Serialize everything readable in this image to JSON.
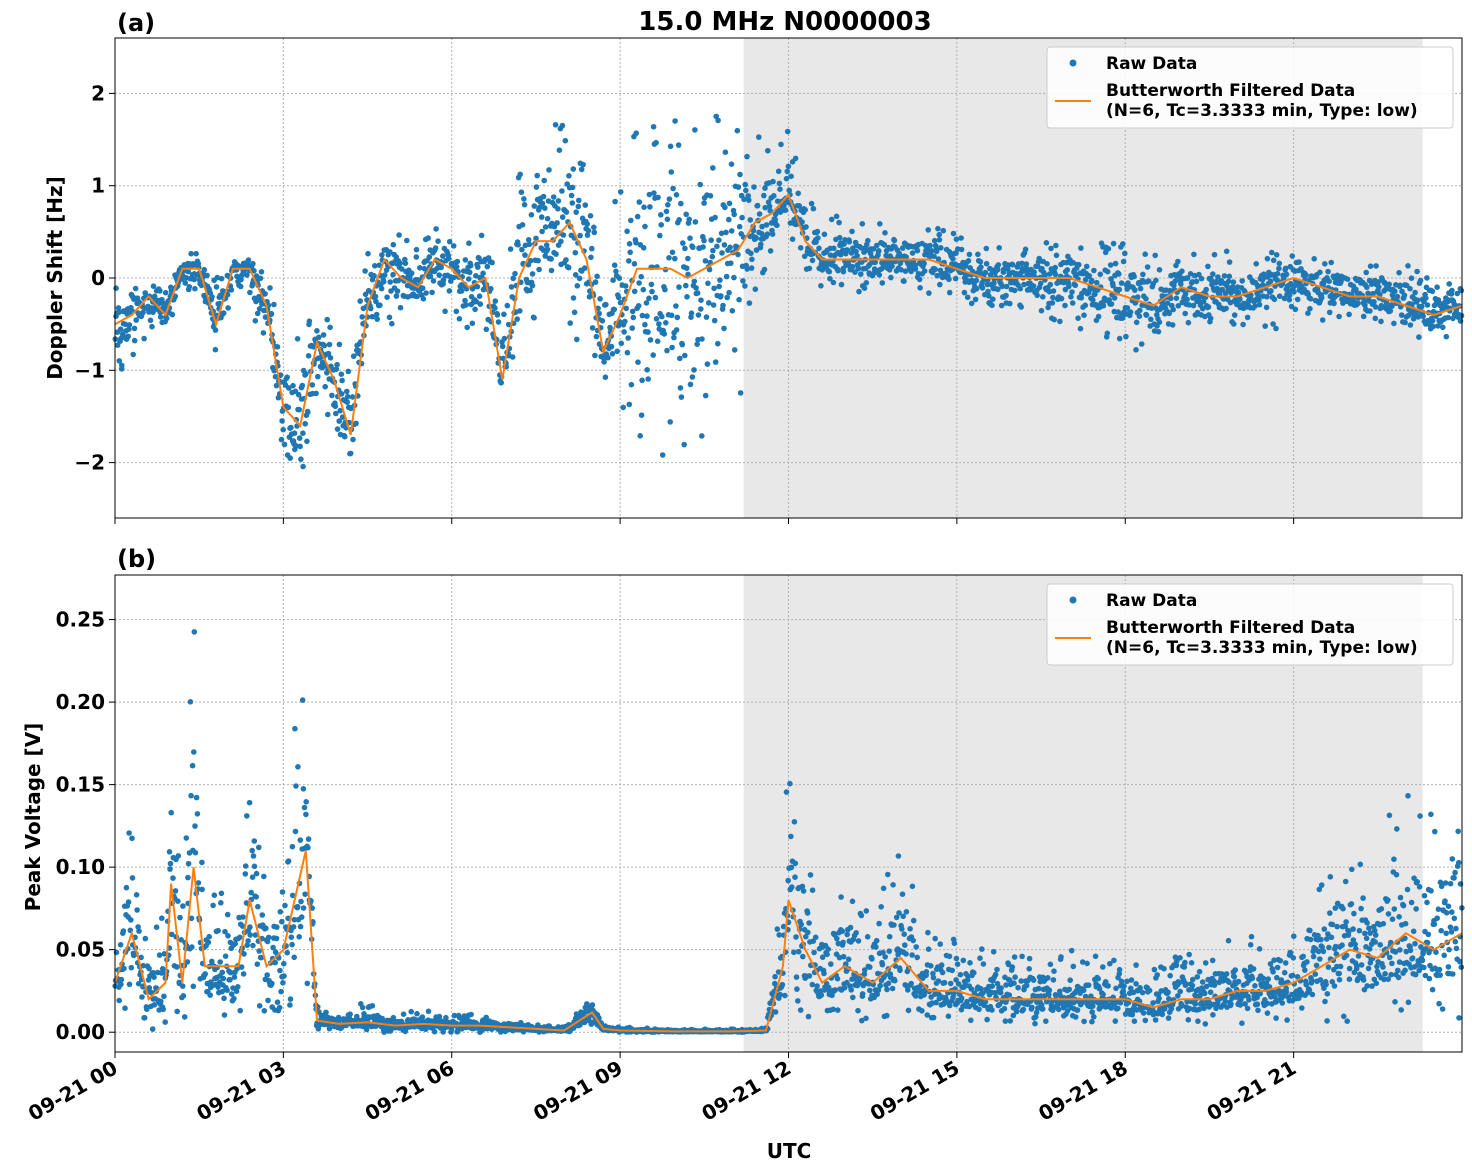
{
  "figure": {
    "title": "15.0 MHz N0000003",
    "xlabel": "UTC"
  },
  "chart_data": [
    {
      "type": "scatter",
      "panel_label": "(a)",
      "ylabel": "Doppler Shift [Hz]",
      "ylim": [
        -2.6,
        2.6
      ],
      "yticks": [
        -2,
        -1,
        0,
        1,
        2
      ],
      "ytick_labels": [
        "−2",
        "−1",
        "0",
        "1",
        "2"
      ],
      "xticks": [
        "09-21 00",
        "09-21 03",
        "09-21 06",
        "09-21 09",
        "09-21 12",
        "09-21 15",
        "09-21 18",
        "09-21 21"
      ],
      "xlim_hours": [
        0,
        24
      ],
      "grid": true,
      "legend_position": "top-right",
      "shaded_region_hours": [
        11.2,
        23.3
      ],
      "series": [
        {
          "name": "Raw Data",
          "kind": "scatter",
          "color": "#1f77b4",
          "envelope": {
            "x_hours": [
              0,
              0.3,
              0.6,
              0.9,
              1.2,
              1.5,
              1.8,
              2.1,
              2.4,
              2.7,
              3.0,
              3.3,
              3.6,
              3.9,
              4.2,
              4.5,
              4.8,
              5.1,
              5.4,
              5.7,
              6.0,
              6.3,
              6.6,
              6.9,
              7.2,
              7.5,
              7.8,
              8.1,
              8.4,
              8.7,
              9.0,
              9.3,
              9.6,
              9.9,
              10.2,
              10.5,
              10.8,
              11.1,
              11.4,
              11.7,
              12.0,
              12.3,
              12.6,
              13.0,
              13.5,
              14.0,
              14.5,
              15.0,
              15.5,
              16.0,
              16.5,
              17.0,
              17.5,
              18.0,
              18.5,
              19.0,
              19.5,
              20.0,
              20.5,
              21.0,
              21.5,
              22.0,
              22.5,
              23.0,
              23.5,
              24.0
            ],
            "upper": [
              0.0,
              0.1,
              -0.1,
              0.0,
              0.25,
              0.3,
              0.0,
              0.2,
              0.3,
              0.0,
              -0.5,
              -0.6,
              -0.1,
              -0.5,
              -0.9,
              0.4,
              0.5,
              0.5,
              0.3,
              0.6,
              0.5,
              0.4,
              0.5,
              0.0,
              1.2,
              1.4,
              1.7,
              1.8,
              1.2,
              0.3,
              1.3,
              1.9,
              2.0,
              1.9,
              2.0,
              1.9,
              1.7,
              1.9,
              1.6,
              1.7,
              1.6,
              1.2,
              0.8,
              0.7,
              0.6,
              0.6,
              0.6,
              0.5,
              0.4,
              0.4,
              0.4,
              0.4,
              0.4,
              0.4,
              0.3,
              0.3,
              0.3,
              0.3,
              0.3,
              0.3,
              0.2,
              0.3,
              0.2,
              0.2,
              0.0,
              -0.1
            ],
            "lower": [
              -1.1,
              -0.9,
              -0.6,
              -0.6,
              -0.1,
              -0.2,
              -0.8,
              -0.2,
              -0.5,
              -0.7,
              -2.0,
              -2.3,
              -1.3,
              -1.8,
              -2.3,
              -0.5,
              -0.5,
              -0.6,
              -0.4,
              -0.3,
              -0.5,
              -0.6,
              -0.6,
              -1.5,
              -0.7,
              -0.4,
              0.0,
              -0.6,
              -0.9,
              -1.1,
              -1.4,
              -1.9,
              -2.0,
              -2.0,
              -1.9,
              -1.8,
              -1.6,
              -1.4,
              -0.4,
              0.2,
              0.5,
              0.1,
              -0.1,
              -0.1,
              -0.2,
              -0.1,
              -0.2,
              -0.3,
              -0.3,
              -0.3,
              -0.4,
              -0.6,
              -0.6,
              -0.8,
              -0.9,
              -0.5,
              -0.5,
              -0.5,
              -0.6,
              -0.5,
              -0.5,
              -0.4,
              -0.5,
              -0.6,
              -0.7,
              -0.6
            ]
          }
        },
        {
          "name": "Butterworth Filtered Data\n(N=6, Tc=3.3333 min, Type: low)",
          "kind": "line",
          "color": "#ff7f0e",
          "x_hours": [
            0,
            0.3,
            0.6,
            0.9,
            1.2,
            1.5,
            1.8,
            2.1,
            2.4,
            2.7,
            3.0,
            3.3,
            3.6,
            3.9,
            4.2,
            4.5,
            4.8,
            5.1,
            5.4,
            5.7,
            6.0,
            6.3,
            6.6,
            6.9,
            7.2,
            7.5,
            7.8,
            8.1,
            8.4,
            8.7,
            9.0,
            9.3,
            9.6,
            9.9,
            10.2,
            10.5,
            10.8,
            11.1,
            11.4,
            11.7,
            12.0,
            12.3,
            12.6,
            13.0,
            13.5,
            14.0,
            14.5,
            15.0,
            15.5,
            16.0,
            16.5,
            17.0,
            17.5,
            18.0,
            18.5,
            19.0,
            19.5,
            20.0,
            20.5,
            21.0,
            21.5,
            22.0,
            22.5,
            23.0,
            23.5,
            24.0
          ],
          "y": [
            -0.5,
            -0.4,
            -0.2,
            -0.4,
            0.1,
            0.1,
            -0.5,
            0.1,
            0.1,
            -0.3,
            -1.4,
            -1.6,
            -0.7,
            -1.1,
            -1.7,
            -0.3,
            0.2,
            0.0,
            -0.1,
            0.2,
            0.1,
            -0.1,
            0.0,
            -1.1,
            0.0,
            0.4,
            0.4,
            0.6,
            0.2,
            -0.8,
            -0.4,
            0.1,
            0.1,
            0.1,
            0.0,
            0.1,
            0.2,
            0.3,
            0.6,
            0.7,
            0.9,
            0.4,
            0.2,
            0.2,
            0.2,
            0.2,
            0.2,
            0.1,
            0.0,
            0.0,
            0.0,
            0.0,
            -0.1,
            -0.2,
            -0.3,
            -0.1,
            -0.2,
            -0.2,
            -0.1,
            0.0,
            -0.1,
            -0.2,
            -0.2,
            -0.3,
            -0.4,
            -0.3
          ]
        }
      ]
    },
    {
      "type": "scatter",
      "panel_label": "(b)",
      "ylabel": "Peak Voltage [V]",
      "ylim": [
        -0.012,
        0.277
      ],
      "yticks": [
        0.0,
        0.05,
        0.1,
        0.15,
        0.2,
        0.25
      ],
      "ytick_labels": [
        "0.00",
        "0.05",
        "0.10",
        "0.15",
        "0.20",
        "0.25"
      ],
      "xticks": [
        "09-21 00",
        "09-21 03",
        "09-21 06",
        "09-21 09",
        "09-21 12",
        "09-21 15",
        "09-21 18",
        "09-21 21"
      ],
      "xlim_hours": [
        0,
        24
      ],
      "grid": true,
      "legend_position": "top-right",
      "shaded_region_hours": [
        11.2,
        23.3
      ],
      "series": [
        {
          "name": "Raw Data",
          "kind": "scatter",
          "color": "#1f77b4",
          "envelope": {
            "x_hours": [
              0,
              0.3,
              0.6,
              0.9,
              1.0,
              1.2,
              1.4,
              1.6,
              1.9,
              2.2,
              2.4,
              2.7,
              3.0,
              3.2,
              3.4,
              3.6,
              4.0,
              4.5,
              5.0,
              5.5,
              6.0,
              6.5,
              7.0,
              7.5,
              8.0,
              8.5,
              8.7,
              9.0,
              10.0,
              11.0,
              11.6,
              11.9,
              12.0,
              12.3,
              12.6,
              13.0,
              13.5,
              14.0,
              14.5,
              15.0,
              15.5,
              16.0,
              16.5,
              17.0,
              17.5,
              18.0,
              18.5,
              19.0,
              19.5,
              20.0,
              20.5,
              21.0,
              21.5,
              22.0,
              22.5,
              23.0,
              23.5,
              24.0
            ],
            "upper": [
              0.09,
              0.14,
              0.06,
              0.08,
              0.19,
              0.08,
              0.26,
              0.09,
              0.09,
              0.1,
              0.17,
              0.09,
              0.1,
              0.19,
              0.22,
              0.02,
              0.01,
              0.02,
              0.01,
              0.015,
              0.01,
              0.012,
              0.008,
              0.005,
              0.003,
              0.025,
              0.005,
              0.003,
              0.002,
              0.002,
              0.003,
              0.1,
              0.19,
              0.12,
              0.08,
              0.1,
              0.08,
              0.11,
              0.06,
              0.06,
              0.05,
              0.05,
              0.05,
              0.05,
              0.05,
              0.05,
              0.04,
              0.05,
              0.05,
              0.06,
              0.06,
              0.08,
              0.1,
              0.13,
              0.12,
              0.15,
              0.13,
              0.16
            ],
            "upper_floor": true,
            "lower": [
              0.01,
              0.005,
              0.0,
              0.005,
              0.005,
              0.0,
              0.0,
              0.005,
              0.005,
              0.005,
              0.005,
              0.01,
              0.01,
              0.02,
              0.005,
              0.002,
              0.002,
              0.0,
              0.0,
              0.0,
              0.0,
              0.0,
              0.0,
              0.0,
              0.0,
              0.0,
              0.0,
              0.0,
              0.0,
              0.0,
              0.0,
              0.01,
              0.02,
              0.01,
              0.005,
              0.01,
              0.005,
              0.005,
              0.005,
              0.005,
              0.005,
              0.005,
              0.005,
              0.005,
              0.005,
              0.005,
              0.005,
              0.005,
              0.005,
              0.005,
              0.005,
              0.005,
              0.005,
              0.005,
              0.005,
              0.005,
              0.005,
              0.005
            ]
          }
        },
        {
          "name": "Butterworth Filtered Data\n(N=6, Tc=3.3333 min, Type: low)",
          "kind": "line",
          "color": "#ff7f0e",
          "x_hours": [
            0,
            0.3,
            0.6,
            0.9,
            1.0,
            1.2,
            1.4,
            1.6,
            1.9,
            2.2,
            2.4,
            2.7,
            3.0,
            3.2,
            3.4,
            3.6,
            4.0,
            4.5,
            5.0,
            5.5,
            6.0,
            6.5,
            7.0,
            7.5,
            8.0,
            8.5,
            8.7,
            9.0,
            10.0,
            11.0,
            11.6,
            11.9,
            12.0,
            12.3,
            12.6,
            13.0,
            13.5,
            14.0,
            14.5,
            15.0,
            15.5,
            16.0,
            16.5,
            17.0,
            17.5,
            18.0,
            18.5,
            19.0,
            19.5,
            20.0,
            20.5,
            21.0,
            21.5,
            22.0,
            22.5,
            23.0,
            23.5,
            24.0
          ],
          "y": [
            0.03,
            0.06,
            0.02,
            0.03,
            0.09,
            0.03,
            0.1,
            0.04,
            0.04,
            0.04,
            0.08,
            0.04,
            0.05,
            0.08,
            0.11,
            0.007,
            0.005,
            0.006,
            0.004,
            0.005,
            0.004,
            0.004,
            0.003,
            0.002,
            0.001,
            0.012,
            0.002,
            0.001,
            0.0005,
            0.0005,
            0.001,
            0.04,
            0.08,
            0.05,
            0.03,
            0.04,
            0.03,
            0.045,
            0.025,
            0.025,
            0.02,
            0.02,
            0.02,
            0.02,
            0.02,
            0.02,
            0.015,
            0.02,
            0.02,
            0.025,
            0.025,
            0.03,
            0.04,
            0.05,
            0.045,
            0.06,
            0.05,
            0.06
          ]
        }
      ]
    }
  ]
}
